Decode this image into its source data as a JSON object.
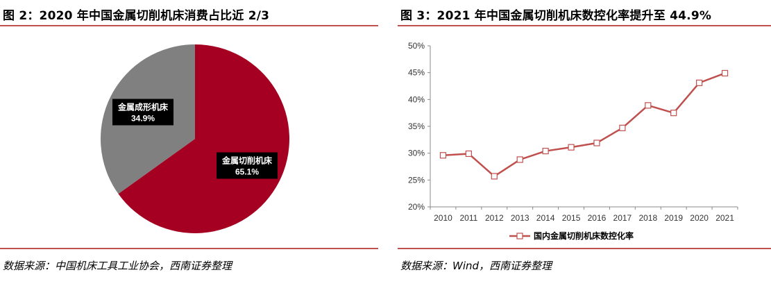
{
  "left_panel": {
    "title": "图 2：2020 年中国金属切削机床消费占比近 2/3",
    "source": "数据来源：中国机床工具工业协会，西南证券整理"
  },
  "right_panel": {
    "title": "图 3：2021 年中国金属切削机床数控化率提升至 44.9%",
    "source": "数据来源：Wind，西南证券整理"
  },
  "colors": {
    "pie_cut": "#a50021",
    "pie_form": "#808080",
    "line": "#c0504d",
    "rule": "#c0504d"
  },
  "chart_data": [
    {
      "type": "pie",
      "slices": [
        {
          "label": "金属切削机床",
          "value": 65.1,
          "value_label": "65.1%",
          "color": "#a50021"
        },
        {
          "label": "金属成形机床",
          "value": 34.9,
          "value_label": "34.9%",
          "color": "#808080"
        }
      ]
    },
    {
      "type": "line",
      "x": [
        "2010",
        "2011",
        "2012",
        "2013",
        "2014",
        "2015",
        "2016",
        "2017",
        "2018",
        "2019",
        "2020",
        "2021"
      ],
      "series": [
        {
          "name": "国内金属切削机床数控化率",
          "values": [
            29.6,
            29.9,
            25.7,
            28.8,
            30.4,
            31.1,
            31.9,
            34.7,
            38.9,
            37.5,
            43.1,
            44.9
          ]
        }
      ],
      "ylim": [
        20,
        50
      ],
      "yticks": [
        "20%",
        "25%",
        "30%",
        "35%",
        "40%",
        "45%",
        "50%"
      ],
      "legend_position": "bottom",
      "grid": false
    }
  ]
}
